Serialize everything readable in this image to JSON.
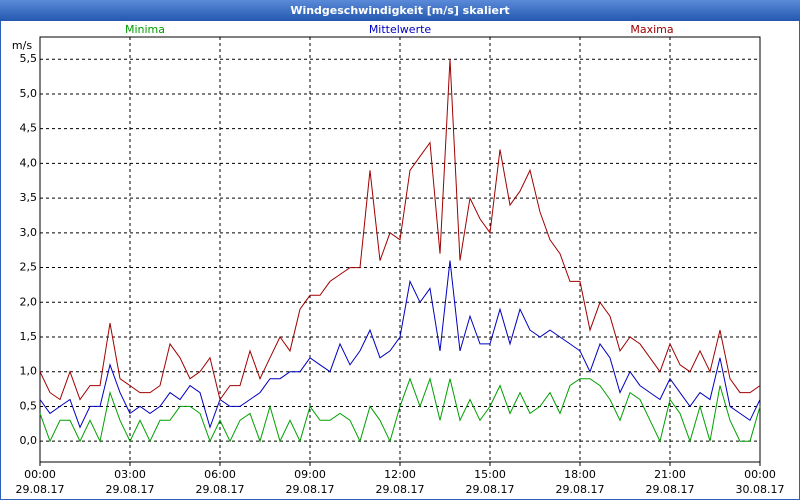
{
  "chart_data": {
    "type": "line",
    "title": "Windgeschwindigkeit [m/s] skaliert",
    "ylabel": "m/s",
    "x": [
      0,
      20,
      40,
      60,
      80,
      100,
      120,
      140,
      160,
      180,
      200,
      220,
      240,
      260,
      280,
      300,
      320,
      340,
      360,
      380,
      400,
      420,
      440,
      460,
      480,
      500,
      520,
      540,
      560,
      580,
      600,
      620,
      640,
      660,
      680,
      700,
      720,
      740,
      760,
      780,
      800,
      820,
      840,
      860,
      880,
      900,
      920,
      940,
      960,
      980,
      1000,
      1020,
      1040,
      1060,
      1080,
      1100,
      1120,
      1140,
      1160,
      1180,
      1200,
      1220,
      1240,
      1260,
      1280,
      1300,
      1320,
      1340,
      1360,
      1380,
      1400,
      1420,
      1440
    ],
    "xlim": [
      0,
      1440
    ],
    "xticks": [
      {
        "value": 0,
        "label": "00:00"
      },
      {
        "value": 180,
        "label": "03:00"
      },
      {
        "value": 360,
        "label": "06:00"
      },
      {
        "value": 540,
        "label": "09:00"
      },
      {
        "value": 720,
        "label": "12:00"
      },
      {
        "value": 900,
        "label": "15:00"
      },
      {
        "value": 1080,
        "label": "18:00"
      },
      {
        "value": 1260,
        "label": "21:00"
      },
      {
        "value": 1440,
        "label": "00:00"
      }
    ],
    "xtick_dates": [
      "29.08.17",
      "29.08.17",
      "29.08.17",
      "29.08.17",
      "29.08.17",
      "29.08.17",
      "29.08.17",
      "29.08.17",
      "30.08.17"
    ],
    "ylim": [
      -0.3,
      5.82
    ],
    "yticks": [
      {
        "value": 0,
        "label": "0,0"
      },
      {
        "value": 0.5,
        "label": "0,5"
      },
      {
        "value": 1,
        "label": "1,0"
      },
      {
        "value": 1.5,
        "label": "1,5"
      },
      {
        "value": 2,
        "label": "2,0"
      },
      {
        "value": 2.5,
        "label": "2,5"
      },
      {
        "value": 3,
        "label": "3,0"
      },
      {
        "value": 3.5,
        "label": "3,5"
      },
      {
        "value": 4,
        "label": "4,0"
      },
      {
        "value": 4.5,
        "label": "4,5"
      },
      {
        "value": 5,
        "label": "5,0"
      },
      {
        "value": 5.5,
        "label": "5,5"
      }
    ],
    "grid": true,
    "series": [
      {
        "name": "Minima",
        "color": "#00a000",
        "values": [
          0.4,
          0,
          0.3,
          0.3,
          0,
          0.3,
          0,
          0.7,
          0.3,
          0,
          0.3,
          0,
          0.3,
          0.3,
          0.5,
          0.5,
          0.4,
          0,
          0.3,
          0,
          0.3,
          0.4,
          0,
          0.5,
          0,
          0.3,
          0,
          0.5,
          0.3,
          0.3,
          0.4,
          0.3,
          0,
          0.5,
          0.3,
          0,
          0.5,
          0.9,
          0.5,
          0.9,
          0.3,
          0.9,
          0.3,
          0.6,
          0.3,
          0.5,
          0.8,
          0.4,
          0.7,
          0.4,
          0.5,
          0.7,
          0.4,
          0.8,
          0.9,
          0.9,
          0.8,
          0.6,
          0.3,
          0.7,
          0.6,
          0.3,
          0,
          0.6,
          0.4,
          0,
          0.5,
          0,
          0.8,
          0.3,
          0,
          0,
          0.5
        ]
      },
      {
        "name": "Mittelwerte",
        "color": "#0000c0",
        "values": [
          0.6,
          0.4,
          0.5,
          0.6,
          0.2,
          0.5,
          0.5,
          1.1,
          0.7,
          0.4,
          0.5,
          0.4,
          0.5,
          0.7,
          0.6,
          0.8,
          0.7,
          0.2,
          0.6,
          0.5,
          0.5,
          0.6,
          0.7,
          0.9,
          0.9,
          1.0,
          1.0,
          1.2,
          1.1,
          1.0,
          1.4,
          1.1,
          1.3,
          1.6,
          1.2,
          1.3,
          1.5,
          2.3,
          2.0,
          2.2,
          1.3,
          2.6,
          1.3,
          1.8,
          1.4,
          1.4,
          1.9,
          1.4,
          1.9,
          1.6,
          1.5,
          1.6,
          1.5,
          1.4,
          1.3,
          1.0,
          1.4,
          1.2,
          0.7,
          1.0,
          0.8,
          0.7,
          0.6,
          0.9,
          0.7,
          0.5,
          0.7,
          0.6,
          1.2,
          0.5,
          0.4,
          0.3,
          0.6
        ]
      },
      {
        "name": "Maxima",
        "color": "#a00000",
        "values": [
          1.0,
          0.7,
          0.6,
          1.0,
          0.6,
          0.8,
          0.8,
          1.7,
          0.9,
          0.8,
          0.7,
          0.7,
          0.8,
          1.4,
          1.2,
          0.9,
          1.0,
          1.2,
          0.6,
          0.8,
          0.8,
          1.3,
          0.9,
          1.2,
          1.5,
          1.3,
          1.9,
          2.1,
          2.1,
          2.3,
          2.4,
          2.5,
          2.5,
          3.9,
          2.6,
          3.0,
          2.9,
          3.9,
          4.1,
          4.3,
          2.7,
          5.5,
          2.6,
          3.5,
          3.2,
          3.0,
          4.2,
          3.4,
          3.6,
          3.9,
          3.3,
          2.9,
          2.7,
          2.3,
          2.3,
          1.6,
          2.0,
          1.8,
          1.3,
          1.5,
          1.4,
          1.2,
          1.0,
          1.4,
          1.1,
          1.0,
          1.3,
          1.0,
          1.6,
          0.9,
          0.7,
          0.7,
          0.8
        ]
      }
    ]
  }
}
